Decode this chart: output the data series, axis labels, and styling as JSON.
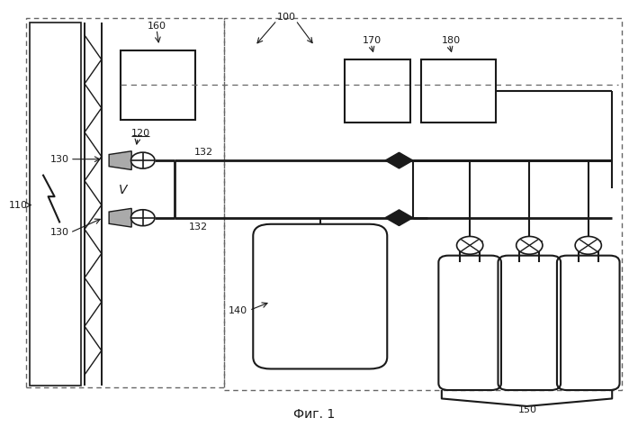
{
  "bg_color": "#ffffff",
  "line_color": "#1a1a1a",
  "caption": "Фиг. 1"
}
